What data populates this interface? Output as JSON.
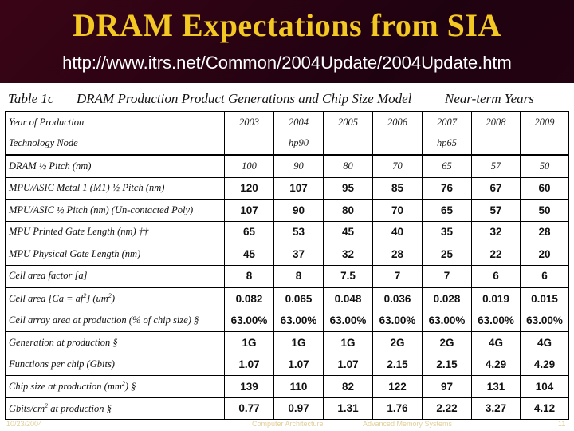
{
  "title": "DRAM Expectations from SIA",
  "url": "http://www.itrs.net/Common/2004Update/2004Update.htm",
  "caption": {
    "table_no": "Table 1c",
    "name": "DRAM Production Product Generations and Chip Size Model",
    "range": "Near-term Years"
  },
  "table": {
    "header": {
      "label": "Year of Production",
      "years": [
        "2003",
        "2004",
        "2005",
        "2006",
        "2007",
        "2008",
        "2009"
      ]
    },
    "node": {
      "label": "Technology Node",
      "values": [
        "",
        "hp90",
        "",
        "",
        "hp65",
        "",
        ""
      ]
    },
    "rows": [
      {
        "label": "DRAM ½ Pitch (nm)",
        "values": [
          "100",
          "90",
          "80",
          "70",
          "65",
          "57",
          "50"
        ]
      },
      {
        "label": "MPU/ASIC Metal 1 (M1) ½ Pitch (nm)",
        "values": [
          "120",
          "107",
          "95",
          "85",
          "76",
          "67",
          "60"
        ]
      },
      {
        "label": "MPU/ASIC ½ Pitch (nm) (Un-contacted Poly)",
        "values": [
          "107",
          "90",
          "80",
          "70",
          "65",
          "57",
          "50"
        ]
      },
      {
        "label": "MPU Printed Gate Length (nm) ††",
        "values": [
          "65",
          "53",
          "45",
          "40",
          "35",
          "32",
          "28"
        ]
      },
      {
        "label": "MPU Physical Gate Length (nm)",
        "values": [
          "45",
          "37",
          "32",
          "28",
          "25",
          "22",
          "20"
        ]
      },
      {
        "label": "Cell area factor [a]",
        "values": [
          "8",
          "8",
          "7.5",
          "7",
          "7",
          "6",
          "6"
        ]
      },
      {
        "label": "Cell area [Ca = af",
        "label_tail": "] (um",
        "label_end": ")",
        "values": [
          "0.082",
          "0.065",
          "0.048",
          "0.036",
          "0.028",
          "0.019",
          "0.015"
        ]
      },
      {
        "label": "Cell array area at production (% of chip size) §",
        "values": [
          "63.00%",
          "63.00%",
          "63.00%",
          "63.00%",
          "63.00%",
          "63.00%",
          "63.00%"
        ]
      },
      {
        "label": "Generation at production §",
        "values": [
          "1G",
          "1G",
          "1G",
          "2G",
          "2G",
          "4G",
          "4G"
        ]
      },
      {
        "label": "Functions per chip (Gbits)",
        "values": [
          "1.07",
          "1.07",
          "1.07",
          "2.15",
          "2.15",
          "4.29",
          "4.29"
        ]
      },
      {
        "label": "Chip size at production (mm",
        "label_tail": ") §",
        "values": [
          "139",
          "110",
          "82",
          "122",
          "97",
          "131",
          "104"
        ]
      },
      {
        "label": "Gbits/cm",
        "label_tail": " at production §",
        "values": [
          "0.77",
          "0.97",
          "1.31",
          "1.76",
          "2.22",
          "3.27",
          "4.12"
        ]
      }
    ]
  },
  "footer": {
    "left": "10/23/2004",
    "center": "Computer Architecture",
    "right": "Advanced Memory Systems",
    "page": "11"
  }
}
